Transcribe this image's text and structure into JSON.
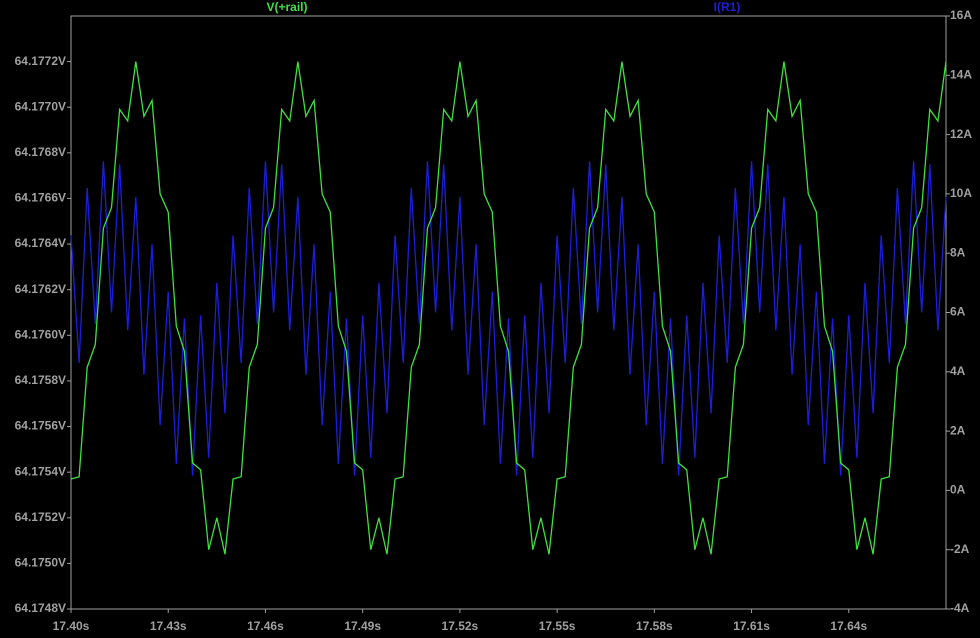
{
  "chart_data": {
    "type": "line",
    "x": [
      17.4,
      17.4025,
      17.405,
      17.4075,
      17.41,
      17.4125,
      17.415,
      17.4175,
      17.42,
      17.4225,
      17.425,
      17.4275,
      17.43,
      17.4325,
      17.435,
      17.4375,
      17.44,
      17.4425,
      17.445,
      17.4475,
      17.45,
      17.4525,
      17.455,
      17.4575,
      17.46,
      17.4625,
      17.465,
      17.4675,
      17.47,
      17.4725,
      17.475,
      17.4775,
      17.48,
      17.4825,
      17.485,
      17.4875,
      17.49,
      17.4925,
      17.495,
      17.4975,
      17.5,
      17.5025,
      17.505,
      17.5075,
      17.51,
      17.5125,
      17.515,
      17.5175,
      17.52,
      17.5225,
      17.525,
      17.5275,
      17.53,
      17.5325,
      17.535,
      17.5375,
      17.54,
      17.5425,
      17.545,
      17.5475,
      17.55,
      17.5525,
      17.555,
      17.5575,
      17.56,
      17.5625,
      17.565,
      17.5675,
      17.57,
      17.5725,
      17.575,
      17.5775,
      17.58,
      17.5825,
      17.585,
      17.5875,
      17.59,
      17.5925,
      17.595,
      17.5975,
      17.6,
      17.6025,
      17.605,
      17.6075,
      17.61,
      17.6125,
      17.615,
      17.6175,
      17.62,
      17.6225,
      17.625,
      17.6275,
      17.63,
      17.6325,
      17.635,
      17.6375,
      17.64,
      17.6425,
      17.645,
      17.6475,
      17.65,
      17.6525,
      17.655,
      17.6575,
      17.66,
      17.6625,
      17.665,
      17.6675,
      17.67
    ],
    "series": [
      {
        "name": "V(+rail)",
        "color": "#3fe03f",
        "axis": "y",
        "values": [
          64.17537,
          64.17538,
          64.17586,
          64.17596,
          64.17647,
          64.17656,
          64.17699,
          64.17694,
          64.1772,
          64.17696,
          64.17703,
          64.17662,
          64.17654,
          64.17604,
          64.17593,
          64.17544,
          64.17541,
          64.17506,
          64.1752,
          64.17504,
          64.17537,
          64.17538,
          64.17586,
          64.17596,
          64.17647,
          64.17656,
          64.17699,
          64.17694,
          64.1772,
          64.17696,
          64.17703,
          64.17662,
          64.17654,
          64.17604,
          64.17593,
          64.17544,
          64.17541,
          64.17506,
          64.1752,
          64.17504,
          64.17537,
          64.17538,
          64.17586,
          64.17596,
          64.17647,
          64.17656,
          64.17699,
          64.17694,
          64.1772,
          64.17696,
          64.17703,
          64.17662,
          64.17654,
          64.17604,
          64.17593,
          64.17544,
          64.17541,
          64.17506,
          64.1752,
          64.17504,
          64.17537,
          64.17538,
          64.17586,
          64.17596,
          64.17647,
          64.17656,
          64.17699,
          64.17694,
          64.1772,
          64.17696,
          64.17703,
          64.17662,
          64.17654,
          64.17604,
          64.17593,
          64.17544,
          64.17541,
          64.17506,
          64.1752,
          64.17504,
          64.17537,
          64.17538,
          64.17586,
          64.17596,
          64.17647,
          64.17656,
          64.17699,
          64.17694,
          64.1772,
          64.17696,
          64.17703,
          64.17662,
          64.17654,
          64.17604,
          64.17593,
          64.17544,
          64.17541,
          64.17506,
          64.1752,
          64.17504,
          64.17537,
          64.17538,
          64.17586,
          64.17596,
          64.17647,
          64.17656,
          64.17699,
          64.17694,
          64.1772
        ]
      },
      {
        "name": "I(R1)",
        "color": "#1e1ed8",
        "axis": "y2",
        "values": [
          8.6,
          4.3,
          10.2,
          5.6,
          11.1,
          6.0,
          11.0,
          5.4,
          9.9,
          3.9,
          8.3,
          2.2,
          6.7,
          0.9,
          5.8,
          0.5,
          5.9,
          1.1,
          7.0,
          2.6,
          8.6,
          4.3,
          10.2,
          5.6,
          11.1,
          6.0,
          11.0,
          5.4,
          9.9,
          3.9,
          8.3,
          2.2,
          6.7,
          0.9,
          5.8,
          0.5,
          5.9,
          1.1,
          7.0,
          2.6,
          8.6,
          4.3,
          10.2,
          5.6,
          11.1,
          6.0,
          11.0,
          5.4,
          9.9,
          3.9,
          8.3,
          2.2,
          6.7,
          0.9,
          5.8,
          0.5,
          5.9,
          1.1,
          7.0,
          2.6,
          8.6,
          4.3,
          10.2,
          5.6,
          11.1,
          6.0,
          11.0,
          5.4,
          9.9,
          3.9,
          8.3,
          2.2,
          6.7,
          0.9,
          5.8,
          0.5,
          5.9,
          1.1,
          7.0,
          2.6,
          8.6,
          4.3,
          10.2,
          5.6,
          11.1,
          6.0,
          11.0,
          5.4,
          9.9,
          3.9,
          8.3,
          2.2,
          6.7,
          0.9,
          5.8,
          0.5,
          5.9,
          1.1,
          7.0,
          2.6,
          8.6,
          4.3,
          10.2,
          5.6,
          11.1,
          6.0,
          11.0,
          5.4,
          9.9
        ]
      }
    ],
    "xlim": [
      17.4,
      17.67
    ],
    "xticks": [
      {
        "value": 17.4,
        "label": "17.40s"
      },
      {
        "value": 17.43,
        "label": "17.43s"
      },
      {
        "value": 17.46,
        "label": "17.46s"
      },
      {
        "value": 17.49,
        "label": "17.49s"
      },
      {
        "value": 17.52,
        "label": "17.52s"
      },
      {
        "value": 17.55,
        "label": "17.55s"
      },
      {
        "value": 17.58,
        "label": "17.58s"
      },
      {
        "value": 17.61,
        "label": "17.61s"
      },
      {
        "value": 17.64,
        "label": "17.64s"
      }
    ],
    "ylim": [
      64.1748,
      64.1774
    ],
    "yticks": [
      {
        "value": 64.1748,
        "label": "64.1748V"
      },
      {
        "value": 64.175,
        "label": "64.1750V"
      },
      {
        "value": 64.1752,
        "label": "64.1752V"
      },
      {
        "value": 64.1754,
        "label": "64.1754V"
      },
      {
        "value": 64.1756,
        "label": "64.1756V"
      },
      {
        "value": 64.1758,
        "label": "64.1758V"
      },
      {
        "value": 64.176,
        "label": "64.1760V"
      },
      {
        "value": 64.1762,
        "label": "64.1762V"
      },
      {
        "value": 64.1764,
        "label": "64.1764V"
      },
      {
        "value": 64.1766,
        "label": "64.1766V"
      },
      {
        "value": 64.1768,
        "label": "64.1768V"
      },
      {
        "value": 64.177,
        "label": "64.1770V"
      },
      {
        "value": 64.1772,
        "label": "64.1772V"
      }
    ],
    "y2lim": [
      -4,
      16
    ],
    "y2ticks": [
      {
        "value": -4,
        "label": "-4A"
      },
      {
        "value": -2,
        "label": "-2A"
      },
      {
        "value": 0,
        "label": "0A"
      },
      {
        "value": 2,
        "label": "2A"
      },
      {
        "value": 4,
        "label": "4A"
      },
      {
        "value": 6,
        "label": "6A"
      },
      {
        "value": 8,
        "label": "8A"
      },
      {
        "value": 10,
        "label": "10A"
      },
      {
        "value": 12,
        "label": "12A"
      },
      {
        "value": 14,
        "label": "14A"
      },
      {
        "value": 16,
        "label": "16A"
      }
    ],
    "grid": false
  }
}
